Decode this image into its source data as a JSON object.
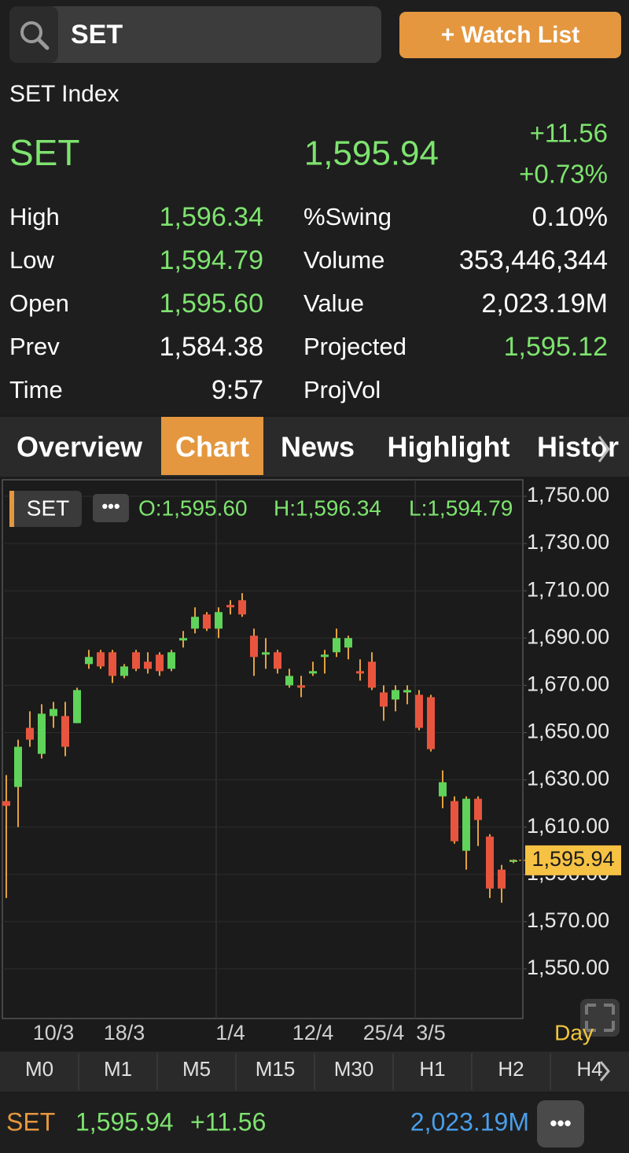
{
  "search": {
    "query": "SET",
    "button": "+ Watch List"
  },
  "quote": {
    "name": "SET Index",
    "symbol": "SET",
    "price": "1,595.94",
    "change": "+11.56",
    "percent": "+0.73%"
  },
  "stats_left": [
    {
      "label": "High",
      "value": "1,596.34",
      "color": "#7ee36f"
    },
    {
      "label": "Low",
      "value": "1,594.79",
      "color": "#7ee36f"
    },
    {
      "label": "Open",
      "value": "1,595.60",
      "color": "#7ee36f"
    },
    {
      "label": "Prev",
      "value": "1,584.38",
      "color": "#ffffff"
    },
    {
      "label": "Time",
      "value": "9:57",
      "color": "#ffffff"
    }
  ],
  "stats_right": [
    {
      "label": "%Swing",
      "value": "0.10%",
      "color": "#ffffff"
    },
    {
      "label": "Volume",
      "value": "353,446,344",
      "color": "#ffffff"
    },
    {
      "label": "Value",
      "value": "2,023.19M",
      "color": "#ffffff"
    },
    {
      "label": "Projected",
      "value": "1,595.12",
      "color": "#7ee36f"
    },
    {
      "label": "ProjVol"
    }
  ],
  "tabs": [
    "Overview",
    "Chart",
    "News",
    "Highlight",
    "Histor"
  ],
  "active_tab": "Chart",
  "chart_data": {
    "type": "candlestick",
    "symbol": "SET",
    "ohlc_labels": [
      "O:1,595.60",
      "H:1,596.34",
      "L:1,594.79"
    ],
    "period": "Day",
    "categories": [
      null,
      null,
      null,
      null,
      "10/3",
      null,
      null,
      null,
      null,
      null,
      "18/3",
      null,
      null,
      null,
      null,
      null,
      null,
      null,
      null,
      "1/4",
      null,
      null,
      null,
      null,
      null,
      null,
      "12/4",
      null,
      null,
      null,
      null,
      null,
      "25/4",
      null,
      null,
      null,
      "3/5",
      null,
      null,
      null,
      null,
      null,
      null,
      null
    ],
    "open": [
      1621,
      1627,
      1652,
      1641,
      1657,
      1657,
      1654,
      1679,
      1684,
      1684,
      1674,
      1684,
      1680,
      1683,
      1677,
      1689,
      1694,
      1700,
      1694,
      1704,
      1706,
      1691,
      1683,
      1684,
      1670,
      1670,
      1675,
      1682,
      1684,
      1686,
      1676,
      1680,
      1667,
      1664,
      1667,
      1666,
      1665,
      1623,
      1621,
      1600,
      1622,
      1606,
      1592,
      1595.6
    ],
    "high": [
      1632,
      1647,
      1659,
      1662,
      1663,
      1663,
      1669,
      1685,
      1685,
      1685,
      1679,
      1685,
      1684,
      1684,
      1685,
      1693,
      1703,
      1701,
      1703,
      1706,
      1709,
      1694,
      1690,
      1685,
      1677,
      1674,
      1680,
      1685,
      1694,
      1691,
      1681,
      1684,
      1670,
      1670,
      1670,
      1668,
      1666,
      1634,
      1623,
      1623,
      1623,
      1607,
      1594,
      1596.34
    ],
    "low": [
      1580,
      1610,
      1644,
      1639,
      1652,
      1640,
      1654,
      1677,
      1677,
      1671,
      1673,
      1676,
      1675,
      1674,
      1676,
      1686,
      1692,
      1693,
      1690,
      1700,
      1699,
      1674,
      1677,
      1675,
      1669,
      1665,
      1674,
      1675,
      1682,
      1681,
      1672,
      1668,
      1655,
      1659,
      1662,
      1651,
      1642,
      1618,
      1603,
      1592,
      1602,
      1580,
      1578,
      1594.79
    ],
    "close": [
      1619,
      1644,
      1647,
      1658,
      1660,
      1644,
      1668,
      1682,
      1678,
      1674,
      1678,
      1677,
      1677,
      1676,
      1684,
      1690,
      1699,
      1694,
      1701,
      1703,
      1700,
      1682,
      1684,
      1677,
      1674,
      1669,
      1676,
      1683,
      1690,
      1690,
      1675,
      1669,
      1661,
      1668,
      1668,
      1652,
      1643,
      1629,
      1604,
      1622,
      1613,
      1584,
      1584,
      1595.94
    ],
    "up_color": "#5fd35a",
    "down_color": "#e8553e",
    "wick_color": "#e4a23f",
    "ylim": [
      1529,
      1757
    ],
    "yticks": [
      {
        "value": 1750,
        "label": "1,750.00"
      },
      {
        "value": 1730,
        "label": "1,730.00"
      },
      {
        "value": 1710,
        "label": "1,710.00"
      },
      {
        "value": 1690,
        "label": "1,690.00"
      },
      {
        "value": 1670,
        "label": "1,670.00"
      },
      {
        "value": 1650,
        "label": "1,650.00"
      },
      {
        "value": 1630,
        "label": "1,630.00"
      },
      {
        "value": 1610,
        "label": "1,610.00"
      },
      {
        "value": 1590,
        "label": "1,590.00"
      },
      {
        "value": 1570,
        "label": "1,570.00"
      },
      {
        "value": 1550,
        "label": "1,550.00"
      }
    ],
    "grid": true
  },
  "timeframes": [
    "M0",
    "M1",
    "M5",
    "M15",
    "M30",
    "H1",
    "H2",
    "H4"
  ],
  "footer": {
    "symbol": "SET",
    "price": "1,595.94",
    "change": "+11.56",
    "value": "2,023.19M"
  }
}
